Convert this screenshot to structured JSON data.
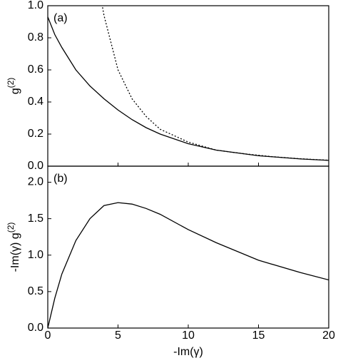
{
  "chart_data": [
    {
      "type": "line",
      "panel_label": "(a)",
      "ylabel": "g",
      "ylabel_superscript": "(2)",
      "xlim": [
        0,
        20
      ],
      "ylim": [
        0,
        1.0
      ],
      "yticks": [
        {
          "value": 0,
          "label": "0.0"
        },
        0.2,
        0.4,
        0.6,
        0.8,
        {
          "value": 1.0,
          "label": "1.0"
        }
      ],
      "series": [
        {
          "color": "#000000",
          "dash": "solid",
          "x": [
            0,
            0.5,
            1,
            2,
            3,
            4,
            5,
            6,
            7,
            8,
            10,
            12,
            15,
            18,
            20
          ],
          "values": [
            0.93,
            0.82,
            0.74,
            0.6,
            0.5,
            0.42,
            0.35,
            0.29,
            0.24,
            0.2,
            0.14,
            0.1,
            0.065,
            0.045,
            0.036
          ]
        },
        {
          "color": "#000000",
          "dash": "dotted",
          "x": [
            3.9,
            4,
            5,
            6,
            7,
            8,
            9,
            10,
            12,
            14,
            16,
            18,
            20
          ],
          "values": [
            0.99,
            0.94,
            0.6,
            0.42,
            0.31,
            0.23,
            0.19,
            0.15,
            0.1,
            0.077,
            0.059,
            0.046,
            0.037
          ]
        }
      ]
    },
    {
      "type": "line",
      "panel_label": "(b)",
      "ylabel": "-Im(γ) g",
      "ylabel_superscript": "(2)",
      "xlabel": "-Im(γ)",
      "xlim": [
        0,
        20
      ],
      "ylim": [
        0,
        2.22
      ],
      "xticks": [
        0,
        5,
        10,
        15,
        20
      ],
      "yticks": [
        {
          "value": 0,
          "label": "0.0"
        },
        0.5,
        {
          "value": 1.0,
          "label": "1.0"
        },
        1.5,
        {
          "value": 2.0,
          "label": "2.0"
        }
      ],
      "series": [
        {
          "color": "#000000",
          "dash": "solid",
          "x": [
            0,
            0.5,
            1,
            2,
            3,
            4,
            5,
            6,
            7,
            8,
            10,
            12,
            15,
            18,
            20
          ],
          "values": [
            0,
            0.41,
            0.74,
            1.2,
            1.5,
            1.68,
            1.72,
            1.7,
            1.64,
            1.56,
            1.35,
            1.17,
            0.93,
            0.76,
            0.66
          ]
        }
      ]
    }
  ]
}
